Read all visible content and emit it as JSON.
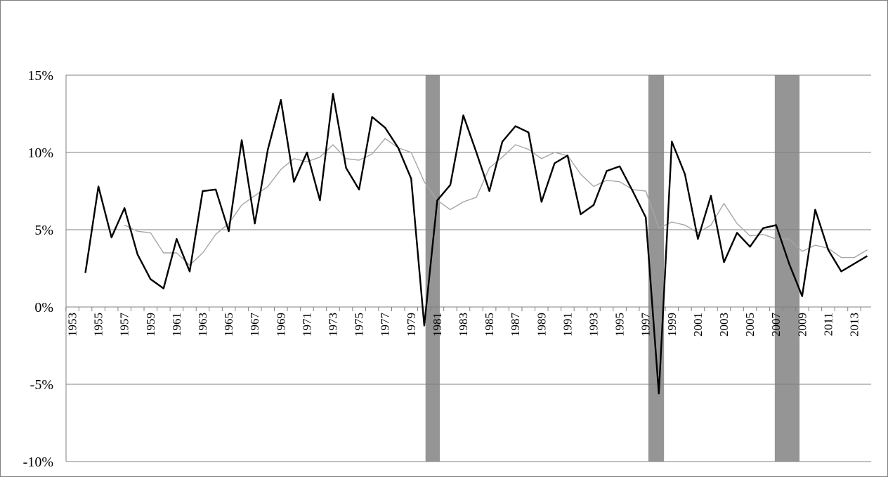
{
  "chart_data": {
    "type": "line",
    "title": "",
    "xlabel": "",
    "ylabel": "",
    "x_tick_labels": [
      "1953",
      "1955",
      "1957",
      "1959",
      "1961",
      "1963",
      "1965",
      "1967",
      "1969",
      "1971",
      "1973",
      "1975",
      "1977",
      "1979",
      "1981",
      "1983",
      "1985",
      "1987",
      "1989",
      "1991",
      "1993",
      "1995",
      "1997",
      "1999",
      "2001",
      "2003",
      "2005",
      "2007",
      "2009",
      "2011",
      "2013"
    ],
    "y_tick_labels": [
      "15%",
      "10%",
      "5%",
      "0%",
      "-5%",
      "-10%"
    ],
    "ylim": [
      -10,
      15
    ],
    "x_range": [
      1953,
      2014
    ],
    "grid": "horizontal",
    "legend": "none",
    "recession_bands": [
      {
        "start": 1980.1,
        "end": 1981.2
      },
      {
        "start": 1997.2,
        "end": 1998.4
      },
      {
        "start": 2006.9,
        "end": 2008.8
      }
    ],
    "series": [
      {
        "color": "#000000",
        "x": [
          1954,
          1955,
          1956,
          1957,
          1958,
          1959,
          1960,
          1961,
          1962,
          1963,
          1964,
          1965,
          1966,
          1967,
          1968,
          1969,
          1970,
          1971,
          1972,
          1973,
          1974,
          1975,
          1976,
          1977,
          1978,
          1979,
          1980,
          1981,
          1982,
          1983,
          1984,
          1985,
          1986,
          1987,
          1988,
          1989,
          1990,
          1991,
          1992,
          1993,
          1994,
          1995,
          1996,
          1997,
          1998,
          1999,
          2000,
          2001,
          2002,
          2003,
          2004,
          2005,
          2006,
          2007,
          2008,
          2009,
          2010,
          2011,
          2012,
          2013,
          2014
        ],
        "values": [
          2.2,
          7.8,
          4.5,
          6.4,
          3.4,
          1.8,
          1.2,
          4.4,
          2.3,
          7.5,
          7.6,
          4.9,
          10.8,
          5.4,
          10.2,
          13.4,
          8.1,
          10.0,
          6.9,
          13.8,
          9.0,
          7.6,
          12.3,
          11.6,
          10.3,
          8.3,
          -1.2,
          6.9,
          7.9,
          12.4,
          10.0,
          7.5,
          10.7,
          11.7,
          11.3,
          6.8,
          9.3,
          9.8,
          6.0,
          6.6,
          8.8,
          9.1,
          7.5,
          5.8,
          -5.6,
          10.7,
          8.6,
          4.4,
          7.2,
          2.9,
          4.8,
          3.9,
          5.1,
          5.3,
          2.8,
          0.7,
          6.3,
          3.7,
          2.3,
          2.8,
          3.3
        ]
      },
      {
        "color": "#a6a6a6",
        "x": [
          1957,
          1958,
          1959,
          1960,
          1961,
          1962,
          1963,
          1964,
          1965,
          1966,
          1967,
          1968,
          1969,
          1970,
          1971,
          1972,
          1973,
          1974,
          1975,
          1976,
          1977,
          1978,
          1979,
          1980,
          1981,
          1982,
          1983,
          1984,
          1985,
          1986,
          1987,
          1988,
          1989,
          1990,
          1991,
          1992,
          1993,
          1994,
          1995,
          1996,
          1997,
          1998,
          1999,
          2000,
          2001,
          2002,
          2003,
          2004,
          2005,
          2006,
          2007,
          2008,
          2009,
          2010,
          2011,
          2012,
          2013,
          2014
        ],
        "values": [
          5.3,
          4.9,
          4.8,
          3.5,
          3.5,
          2.7,
          3.5,
          4.7,
          5.4,
          6.6,
          7.2,
          7.8,
          8.9,
          9.6,
          9.4,
          9.7,
          10.5,
          9.6,
          9.5,
          9.9,
          10.9,
          10.3,
          10.0,
          8.1,
          6.9,
          6.3,
          6.8,
          7.1,
          9.0,
          9.7,
          10.5,
          10.2,
          9.6,
          10.0,
          9.8,
          8.6,
          7.8,
          8.2,
          8.1,
          7.6,
          7.5,
          5.1,
          5.5,
          5.3,
          4.8,
          5.3,
          6.7,
          5.4,
          4.6,
          4.7,
          4.4,
          4.4,
          3.6,
          4.0,
          3.8,
          3.2,
          3.2,
          3.7
        ]
      }
    ]
  }
}
